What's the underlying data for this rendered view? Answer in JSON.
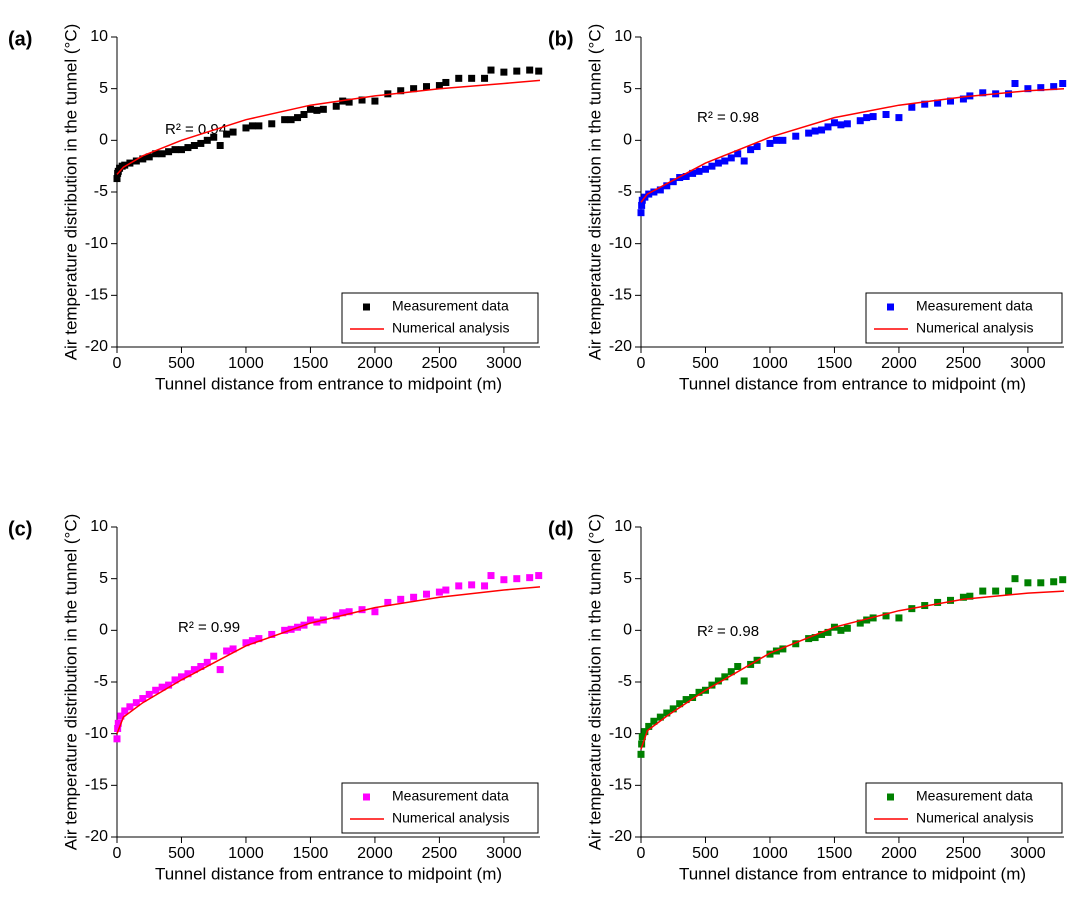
{
  "chart_data": [
    {
      "type": "scatter",
      "label": "(a)",
      "xlabel": "Tunnel distance from entrance to midpoint (m)",
      "ylabel": "Air temperature distribution in the tunnel (°C)",
      "annotation": "R² = 0.94",
      "xlim": [
        0,
        3280
      ],
      "ylim": [
        -20,
        10
      ],
      "xticks": [
        0,
        500,
        1000,
        1500,
        2000,
        2500,
        3000
      ],
      "yticks": [
        -20,
        -15,
        -10,
        -5,
        0,
        5,
        10
      ],
      "legend": "lower right",
      "series": [
        {
          "name": "Measurement data",
          "color": "#000000",
          "kind": "scatter",
          "x": [
            0,
            5,
            10,
            20,
            40,
            60,
            100,
            150,
            200,
            250,
            300,
            350,
            400,
            450,
            500,
            550,
            600,
            650,
            700,
            750,
            800,
            850,
            900,
            1000,
            1050,
            1100,
            1200,
            1300,
            1350,
            1400,
            1450,
            1500,
            1550,
            1600,
            1700,
            1750,
            1800,
            1900,
            2000,
            2100,
            2200,
            2300,
            2400,
            2500,
            2550,
            2650,
            2750,
            2850,
            2900,
            3000,
            3100,
            3200,
            3270
          ],
          "values": [
            -3.7,
            -3.2,
            -3.0,
            -2.7,
            -2.5,
            -2.4,
            -2.2,
            -2.0,
            -1.8,
            -1.6,
            -1.3,
            -1.3,
            -1.1,
            -0.9,
            -0.9,
            -0.7,
            -0.5,
            -0.3,
            0,
            0.3,
            -0.5,
            0.6,
            0.8,
            1.2,
            1.4,
            1.4,
            1.6,
            2.0,
            2.0,
            2.2,
            2.5,
            3.0,
            2.9,
            3.0,
            3.3,
            3.8,
            3.7,
            3.9,
            3.8,
            4.5,
            4.8,
            5.0,
            5.2,
            5.3,
            5.6,
            6.0,
            6.0,
            6.0,
            6.8,
            6.6,
            6.7,
            6.8,
            6.7
          ]
        },
        {
          "name": "Numerical analysis",
          "color": "#ff0000",
          "kind": "line",
          "x": [
            0,
            50,
            200,
            500,
            1000,
            1500,
            2000,
            2500,
            3000,
            3280
          ],
          "values": [
            -3.3,
            -2.6,
            -1.5,
            0,
            2,
            3.4,
            4.3,
            5,
            5.5,
            5.8
          ]
        }
      ]
    },
    {
      "type": "scatter",
      "label": "(b)",
      "xlabel": "Tunnel distance from entrance to midpoint (m)",
      "ylabel": "Air temperature distribution in the tunnel (°C)",
      "annotation": "R² = 0.98",
      "xlim": [
        0,
        3280
      ],
      "ylim": [
        -20,
        10
      ],
      "xticks": [
        0,
        500,
        1000,
        1500,
        2000,
        2500,
        3000
      ],
      "yticks": [
        -20,
        -15,
        -10,
        -5,
        0,
        5,
        10
      ],
      "legend": "lower right",
      "series": [
        {
          "name": "Measurement data",
          "color": "#0000ff",
          "kind": "scatter",
          "x": [
            0,
            5,
            10,
            30,
            60,
            100,
            150,
            200,
            250,
            300,
            350,
            400,
            450,
            500,
            550,
            600,
            650,
            700,
            750,
            800,
            850,
            900,
            1000,
            1050,
            1100,
            1200,
            1300,
            1350,
            1400,
            1450,
            1500,
            1550,
            1600,
            1700,
            1750,
            1800,
            1900,
            2000,
            2100,
            2200,
            2300,
            2400,
            2500,
            2550,
            2650,
            2750,
            2850,
            2900,
            3000,
            3100,
            3200,
            3270
          ],
          "values": [
            -7,
            -6.3,
            -5.8,
            -5.5,
            -5.2,
            -5.0,
            -4.8,
            -4.4,
            -4.0,
            -3.6,
            -3.5,
            -3.2,
            -3.0,
            -2.8,
            -2.5,
            -2.2,
            -2.0,
            -1.7,
            -1.3,
            -2.0,
            -0.9,
            -0.6,
            -0.3,
            0,
            0,
            0.4,
            0.7,
            0.9,
            1.0,
            1.3,
            1.7,
            1.5,
            1.6,
            1.9,
            2.2,
            2.3,
            2.5,
            2.2,
            3.2,
            3.5,
            3.6,
            3.8,
            4.0,
            4.3,
            4.6,
            4.5,
            4.5,
            5.5,
            5.0,
            5.1,
            5.2,
            5.5
          ]
        },
        {
          "name": "Numerical analysis",
          "color": "#ff0000",
          "kind": "line",
          "x": [
            0,
            50,
            200,
            500,
            1000,
            1500,
            2000,
            2500,
            3000,
            3280
          ],
          "values": [
            -6,
            -5.2,
            -4.2,
            -2.2,
            0.3,
            2.2,
            3.4,
            4.2,
            4.8,
            5.0
          ]
        }
      ]
    },
    {
      "type": "scatter",
      "label": "(c)",
      "xlabel": "Tunnel distance from entrance to midpoint (m)",
      "ylabel": "Air temperature distribution in the tunnel (°C)",
      "annotation": "R² = 0.99",
      "xlim": [
        0,
        3280
      ],
      "ylim": [
        -20,
        10
      ],
      "xticks": [
        0,
        500,
        1000,
        1500,
        2000,
        2500,
        3000
      ],
      "yticks": [
        -20,
        -15,
        -10,
        -5,
        0,
        5,
        10
      ],
      "legend": "lower right",
      "series": [
        {
          "name": "Measurement data",
          "color": "#ff00ff",
          "kind": "scatter",
          "x": [
            0,
            5,
            10,
            30,
            60,
            100,
            150,
            200,
            250,
            300,
            350,
            400,
            450,
            500,
            550,
            600,
            650,
            700,
            750,
            800,
            850,
            900,
            1000,
            1050,
            1100,
            1200,
            1300,
            1350,
            1400,
            1450,
            1500,
            1550,
            1600,
            1700,
            1750,
            1800,
            1900,
            2000,
            2100,
            2200,
            2300,
            2400,
            2500,
            2550,
            2650,
            2750,
            2850,
            2900,
            3000,
            3100,
            3200,
            3270
          ],
          "values": [
            -10.5,
            -9.5,
            -9,
            -8.3,
            -7.8,
            -7.4,
            -7.0,
            -6.6,
            -6.2,
            -5.8,
            -5.5,
            -5.3,
            -4.8,
            -4.5,
            -4.2,
            -3.8,
            -3.5,
            -3.1,
            -2.5,
            -3.8,
            -2.0,
            -1.8,
            -1.2,
            -1.0,
            -0.8,
            -0.4,
            0,
            0.1,
            0.3,
            0.5,
            1.0,
            0.8,
            1.0,
            1.4,
            1.7,
            1.8,
            2.0,
            1.8,
            2.7,
            3.0,
            3.2,
            3.5,
            3.7,
            3.9,
            4.3,
            4.4,
            4.3,
            5.3,
            4.9,
            5.0,
            5.1,
            5.3
          ]
        },
        {
          "name": "Numerical analysis",
          "color": "#ff0000",
          "kind": "line",
          "x": [
            0,
            50,
            200,
            500,
            1000,
            1500,
            2000,
            2500,
            3000,
            3280
          ],
          "values": [
            -10,
            -8.4,
            -7.0,
            -4.8,
            -1.5,
            0.7,
            2.2,
            3.2,
            3.9,
            4.2
          ]
        }
      ]
    },
    {
      "type": "scatter",
      "label": "(d)",
      "xlabel": "Tunnel distance from entrance to midpoint (m)",
      "ylabel": "Air temperature distribution in the tunnel (°C)",
      "annotation": "R² = 0.98",
      "xlim": [
        0,
        3280
      ],
      "ylim": [
        -20,
        10
      ],
      "xticks": [
        0,
        500,
        1000,
        1500,
        2000,
        2500,
        3000
      ],
      "yticks": [
        -20,
        -15,
        -10,
        -5,
        0,
        5,
        10
      ],
      "legend": "lower right",
      "series": [
        {
          "name": "Measurement data",
          "color": "#008000",
          "kind": "scatter",
          "x": [
            0,
            5,
            10,
            30,
            60,
            100,
            150,
            200,
            250,
            300,
            350,
            400,
            450,
            500,
            550,
            600,
            650,
            700,
            750,
            800,
            850,
            900,
            1000,
            1050,
            1100,
            1200,
            1300,
            1350,
            1400,
            1450,
            1500,
            1550,
            1600,
            1700,
            1750,
            1800,
            1900,
            2000,
            2100,
            2200,
            2300,
            2400,
            2500,
            2550,
            2650,
            2750,
            2850,
            2900,
            3000,
            3100,
            3200,
            3270
          ],
          "values": [
            -12,
            -11,
            -10.3,
            -9.8,
            -9.3,
            -8.8,
            -8.4,
            -8.0,
            -7.6,
            -7.1,
            -6.7,
            -6.5,
            -6.0,
            -5.8,
            -5.3,
            -4.9,
            -4.5,
            -4.0,
            -3.5,
            -4.9,
            -3.3,
            -2.9,
            -2.3,
            -2.0,
            -1.8,
            -1.3,
            -0.8,
            -0.7,
            -0.4,
            -0.2,
            0.3,
            0,
            0.2,
            0.7,
            1.0,
            1.2,
            1.4,
            1.2,
            2.1,
            2.4,
            2.7,
            2.9,
            3.2,
            3.3,
            3.8,
            3.8,
            3.8,
            5.0,
            4.6,
            4.6,
            4.7,
            4.9
          ]
        },
        {
          "name": "Numerical analysis",
          "color": "#ff0000",
          "kind": "line",
          "x": [
            0,
            50,
            200,
            500,
            1000,
            1500,
            2000,
            2500,
            3000,
            3280
          ],
          "values": [
            -11.5,
            -9.7,
            -8.3,
            -5.8,
            -2.2,
            0.3,
            1.9,
            3.0,
            3.6,
            3.8
          ]
        }
      ]
    }
  ]
}
